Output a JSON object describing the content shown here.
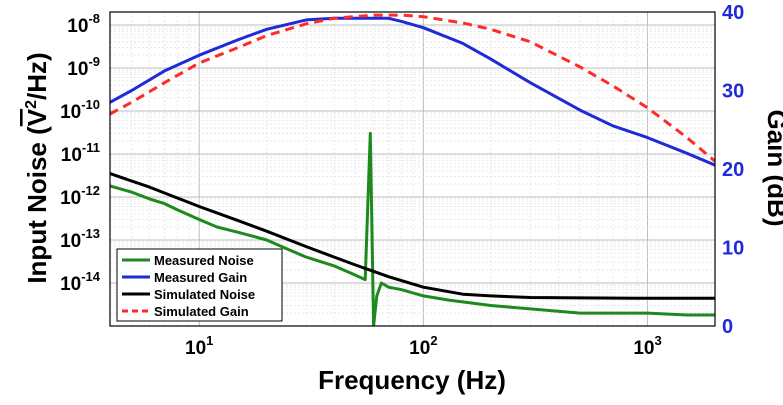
{
  "chart_data": {
    "type": "line",
    "xlabel": "Frequency (Hz)",
    "ylabel_left": "Input Noise (V²/Hz)",
    "ylabel_right": "Gain (dB)",
    "x_scale": "log",
    "xlim": [
      4,
      2000
    ],
    "ylim_left": [
      1e-15,
      2e-08
    ],
    "y_left_scale": "log",
    "ylim_right": [
      0,
      40
    ],
    "grid": true,
    "legend_position": "bottom-left",
    "x_ticks": [
      {
        "value": 10,
        "base": "10",
        "exp": "1"
      },
      {
        "value": 100,
        "base": "10",
        "exp": "2"
      },
      {
        "value": 1000,
        "base": "10",
        "exp": "3"
      }
    ],
    "y_left_ticks": [
      {
        "value": 1e-08,
        "base": "10",
        "exp": "-8"
      },
      {
        "value": 1e-09,
        "base": "10",
        "exp": "-9"
      },
      {
        "value": 1e-10,
        "base": "10",
        "exp": "-10"
      },
      {
        "value": 1e-11,
        "base": "10",
        "exp": "-11"
      },
      {
        "value": 1e-12,
        "base": "10",
        "exp": "-12"
      },
      {
        "value": 1e-13,
        "base": "10",
        "exp": "-13"
      },
      {
        "value": 1e-14,
        "base": "10",
        "exp": "-14"
      }
    ],
    "y_right_ticks": [
      "40",
      "30",
      "20",
      "10",
      "0"
    ],
    "series": [
      {
        "name": "Measured Noise",
        "axis": "left",
        "color": "#1e8a1e",
        "style": "solid",
        "x": [
          4,
          5,
          6,
          7,
          8,
          10,
          12,
          15,
          20,
          25,
          30,
          40,
          50,
          55,
          58,
          60,
          62,
          65,
          70,
          80,
          100,
          130,
          200,
          300,
          500,
          700,
          1000,
          1500,
          2000
        ],
        "y": [
          1.8e-12,
          1.3e-12,
          9e-13,
          7e-13,
          5e-13,
          3e-13,
          2e-13,
          1.5e-13,
          1e-13,
          6e-14,
          4e-14,
          2.5e-14,
          1.5e-14,
          1.2e-14,
          3e-11,
          1e-15,
          5e-15,
          1e-14,
          8e-15,
          7e-15,
          5e-15,
          4e-15,
          3e-15,
          2.5e-15,
          2e-15,
          2e-15,
          2e-15,
          1.8e-15,
          1.8e-15
        ]
      },
      {
        "name": "Measured Gain",
        "axis": "right",
        "color": "#1f2bd6",
        "style": "solid",
        "x": [
          4,
          5,
          7,
          10,
          15,
          20,
          30,
          40,
          50,
          70,
          80,
          100,
          150,
          200,
          300,
          500,
          700,
          1000,
          1500,
          2000
        ],
        "y": [
          28.5,
          30,
          32.5,
          34.5,
          36.5,
          37.8,
          39,
          39.2,
          39.2,
          39.2,
          38.8,
          38,
          36,
          34,
          31,
          27.5,
          25.5,
          24,
          22,
          20.5
        ]
      },
      {
        "name": "Simulated Noise",
        "axis": "left",
        "color": "#000000",
        "style": "solid",
        "x": [
          4,
          6,
          10,
          15,
          20,
          30,
          40,
          50,
          70,
          100,
          150,
          200,
          300,
          500,
          1000,
          2000
        ],
        "y": [
          3.5e-12,
          1.7e-12,
          6e-13,
          2.8e-13,
          1.6e-13,
          7e-14,
          4e-14,
          2.6e-14,
          1.4e-14,
          8e-15,
          5.5e-15,
          5e-15,
          4.6e-15,
          4.5e-15,
          4.4e-15,
          4.4e-15
        ]
      },
      {
        "name": "Simulated Gain",
        "axis": "right",
        "color": "#ff2a2a",
        "style": "dashed",
        "x": [
          4,
          5,
          7,
          10,
          15,
          20,
          30,
          40,
          60,
          80,
          100,
          150,
          200,
          300,
          500,
          700,
          1000,
          1500,
          2000
        ],
        "y": [
          27,
          28.5,
          31,
          33.5,
          35.5,
          37,
          38.5,
          39.2,
          39.6,
          39.6,
          39.4,
          38.6,
          37.8,
          36.2,
          33,
          30.6,
          27.8,
          24,
          21
        ]
      }
    ]
  }
}
